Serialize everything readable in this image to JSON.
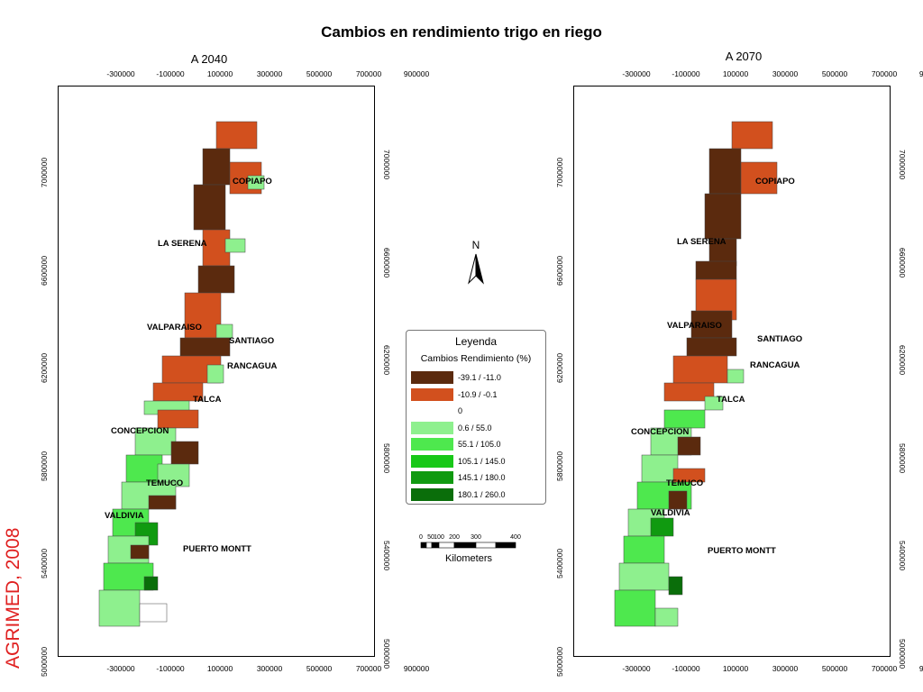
{
  "title": "Cambios en rendimiento trigo en riego",
  "maps": [
    {
      "subtitle": "A 2040"
    },
    {
      "subtitle": "A 2070"
    }
  ],
  "x_ticks": [
    "-300000",
    "-100000",
    "100000",
    "300000",
    "500000",
    "700000",
    "900000"
  ],
  "y_ticks": [
    "7000000",
    "6600000",
    "6200000",
    "5800000",
    "5400000",
    "5000000"
  ],
  "cities": [
    "COPIAPO",
    "LA SERENA",
    "VALPARAISO",
    "SANTIAGO",
    "RANCAGUA",
    "TALCA",
    "CONCEPCION",
    "TEMUCO",
    "VALDIVIA",
    "PUERTO MONTT"
  ],
  "legend": {
    "title": "Leyenda",
    "subtitle": "Cambios Rendimiento (%)",
    "items": [
      {
        "label": "-39.1 / -11.0",
        "color": "#5b2a0e"
      },
      {
        "label": "-10.9 / -0.1",
        "color": "#d2501e"
      },
      {
        "label": "0",
        "color": "#ffffff"
      },
      {
        "label": "0.6 / 55.0",
        "color": "#8ef08e"
      },
      {
        "label": "55.1 / 105.0",
        "color": "#4ee84e"
      },
      {
        "label": "105.1 / 145.0",
        "color": "#18c818"
      },
      {
        "label": "145.1 / 180.0",
        "color": "#109a10"
      },
      {
        "label": "180.1 / 260.0",
        "color": "#0a6e0a"
      }
    ]
  },
  "north_label": "N",
  "scale_bar": {
    "ticks": [
      "0",
      "50",
      "100",
      "200",
      "300",
      "400"
    ],
    "unit": "Kilometers"
  },
  "watermark": "AGRIMED, 2008"
}
